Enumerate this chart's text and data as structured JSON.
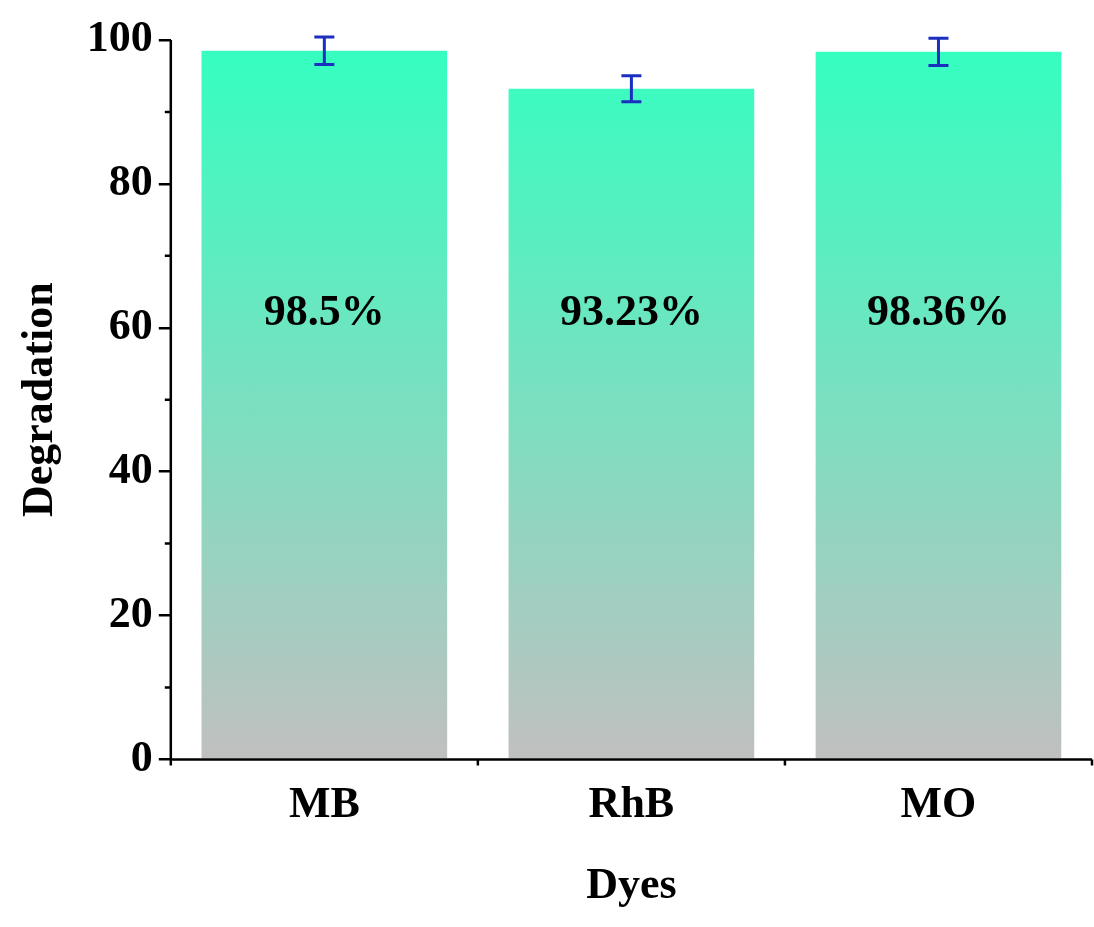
{
  "chart_data": {
    "type": "bar",
    "xlabel": "Dyes",
    "ylabel": "Degradation",
    "categories": [
      "MB",
      "RhB",
      "MO"
    ],
    "values": [
      98.5,
      93.23,
      98.36
    ],
    "errors": [
      1.9,
      1.8,
      1.9
    ],
    "value_labels": [
      "98.5%",
      "93.23%",
      "98.36%"
    ],
    "color": "#33ffc0",
    "ylim": [
      0,
      100
    ],
    "yticks": [
      0,
      20,
      40,
      60,
      80,
      100
    ],
    "grid": false,
    "legend": false
  }
}
